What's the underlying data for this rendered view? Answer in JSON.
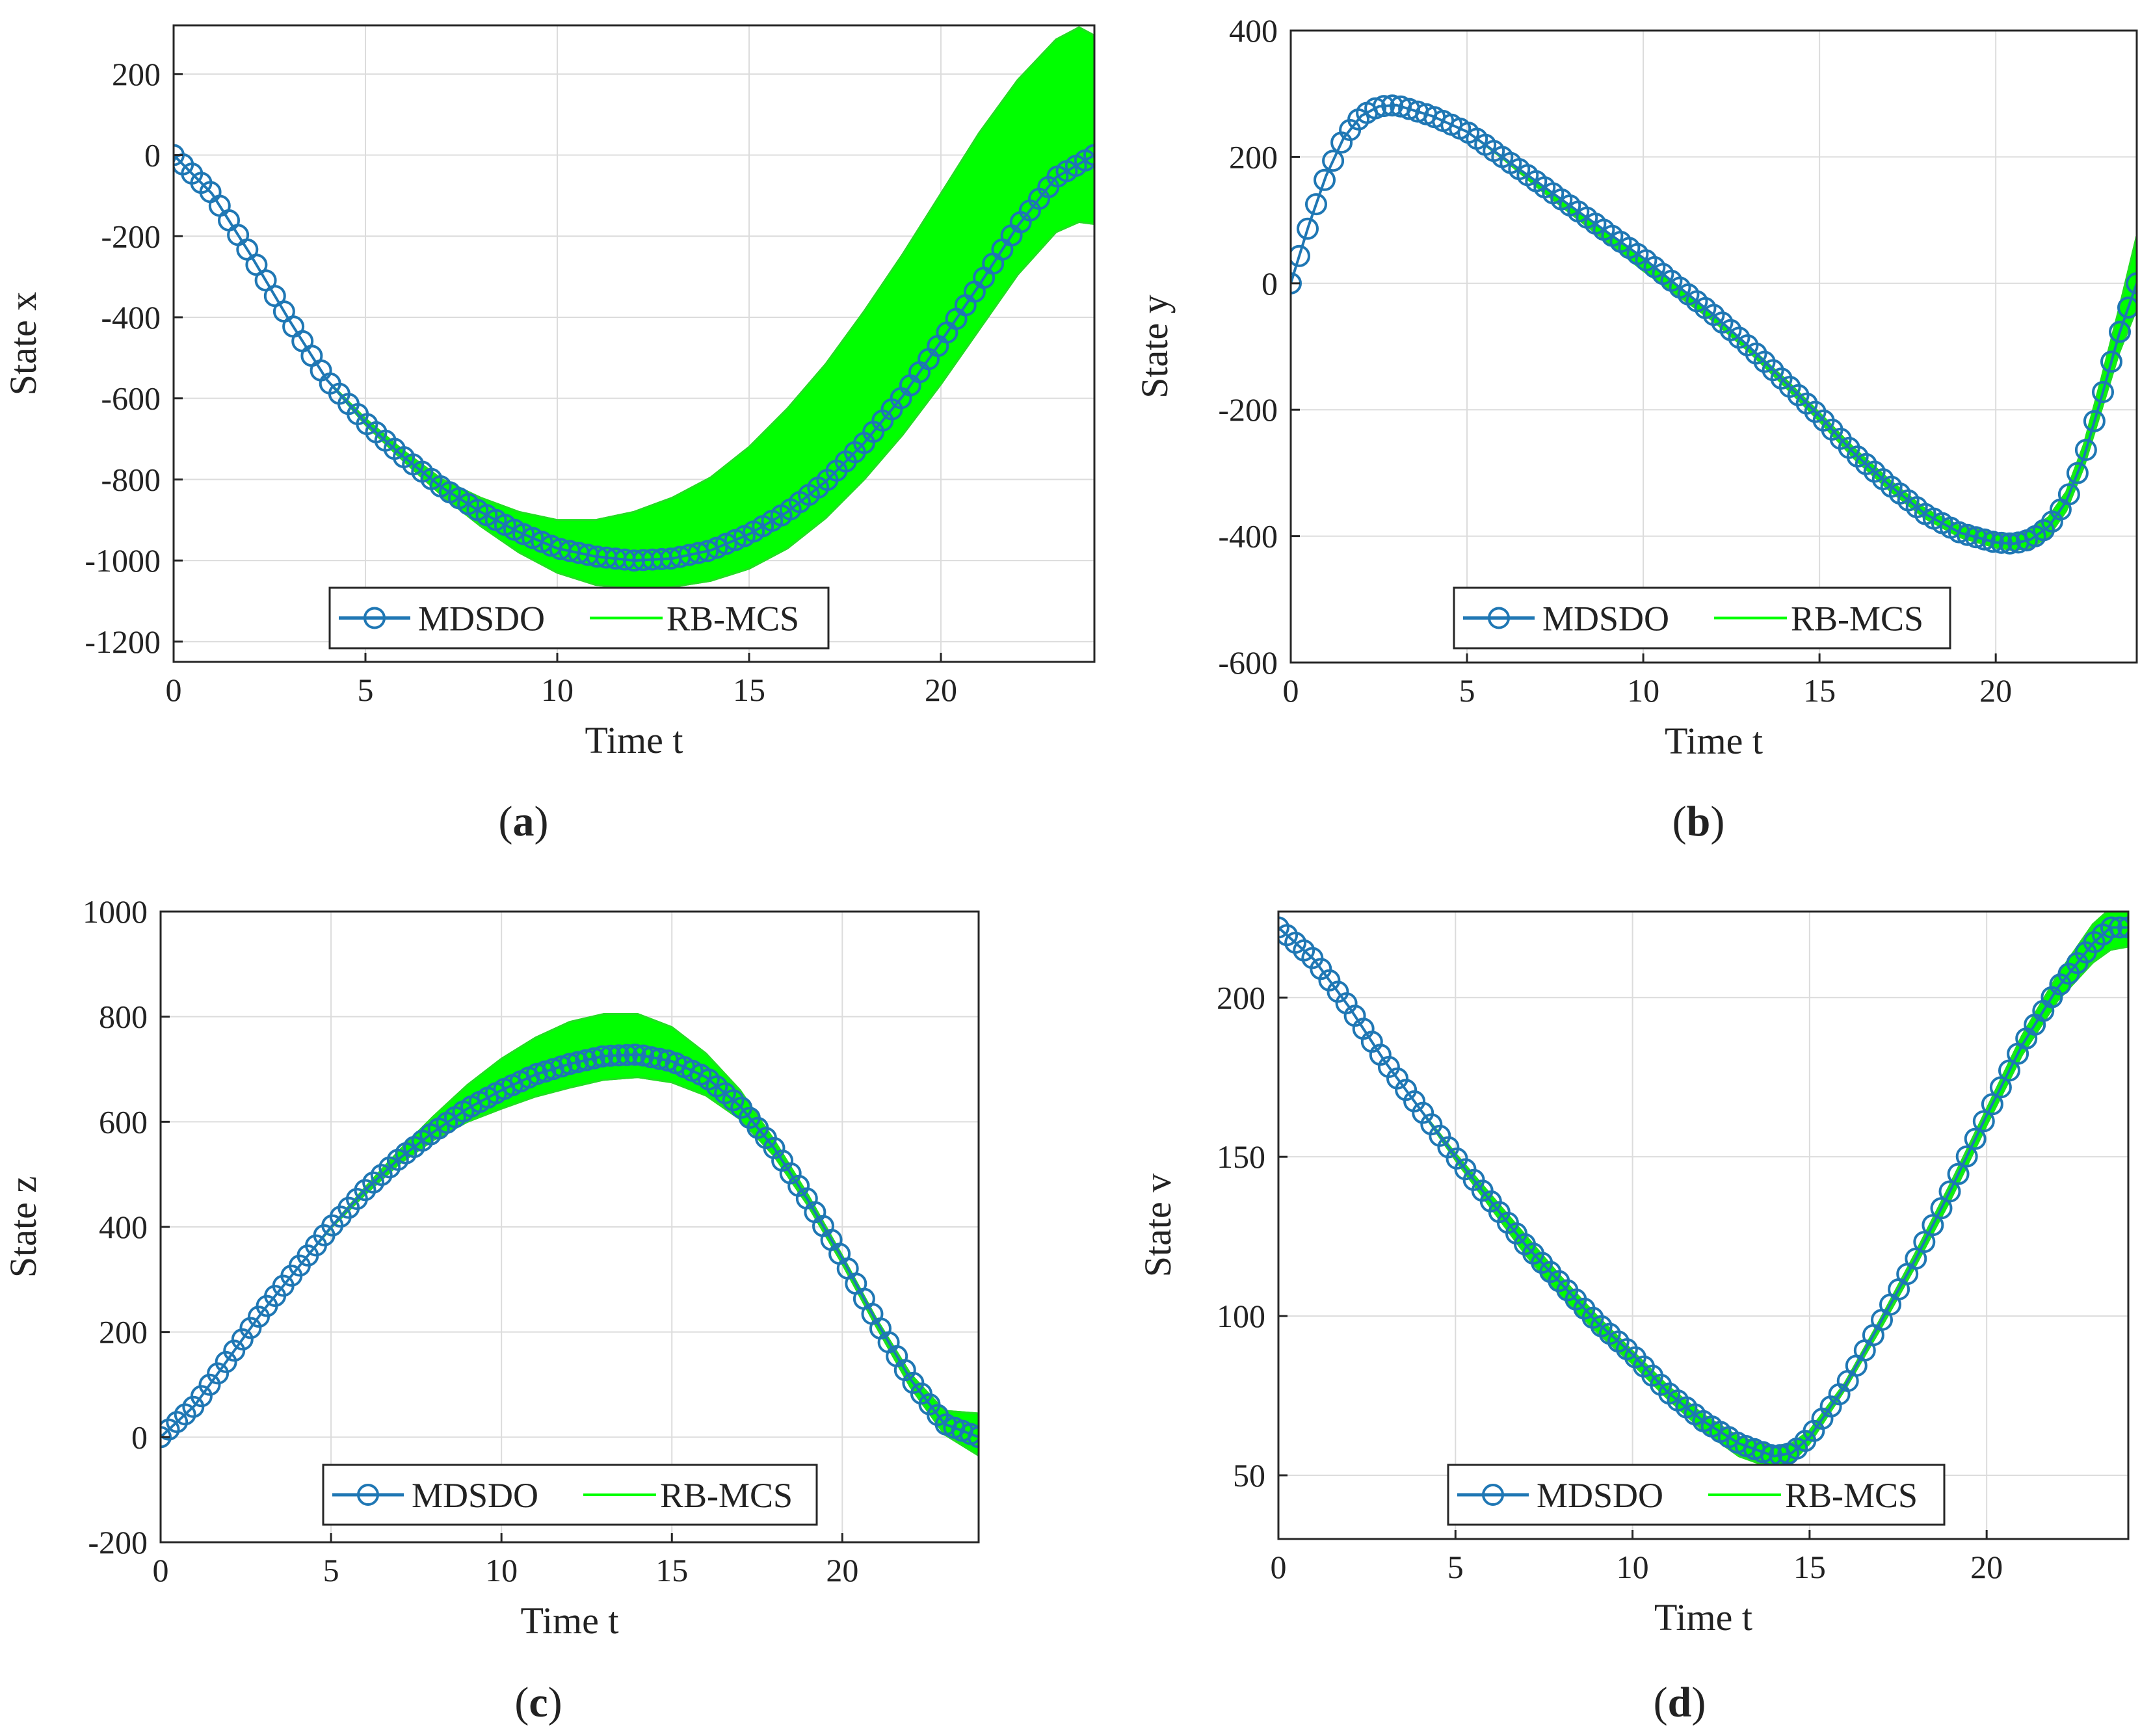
{
  "figure": {
    "colors": {
      "mdsdo": "#1f77b4",
      "rbmcs": "#00ff00",
      "grid": "#dcdcdc",
      "axes": "#262626"
    },
    "legend_location": "bottom-center"
  },
  "chart_data": [
    {
      "type": "line",
      "panel": "a",
      "caption": {
        "open": "(",
        "letter": "a",
        "close": ")"
      },
      "xlabel": "Time t",
      "ylabel": "State x",
      "xlim": [
        0,
        24
      ],
      "ylim": [
        -1250,
        320
      ],
      "xticks": [
        0,
        5,
        10,
        15,
        20
      ],
      "yticks": [
        -1200,
        -1000,
        -800,
        -600,
        -400,
        -200,
        0,
        200
      ],
      "grid": true,
      "legend": [
        "MDSDO",
        "RB-MCS"
      ],
      "series": [
        {
          "name": "MDSDO",
          "style": "line-with-circle-markers",
          "x": [
            0,
            1,
            2,
            3,
            4,
            5,
            6,
            7,
            8,
            9,
            10,
            11,
            12,
            13,
            14,
            15,
            16,
            17,
            18,
            19,
            20,
            21,
            22,
            23,
            24
          ],
          "y": [
            0,
            -95,
            -245,
            -405,
            -555,
            -660,
            -745,
            -820,
            -880,
            -930,
            -970,
            -990,
            -1000,
            -995,
            -975,
            -935,
            -880,
            -805,
            -710,
            -595,
            -460,
            -320,
            -175,
            -55,
            0
          ]
        },
        {
          "name": "RB-MCS",
          "style": "envelope",
          "x": [
            0,
            1,
            2,
            3,
            4,
            5,
            6,
            7,
            8,
            9,
            10,
            11,
            12,
            13,
            14,
            15,
            16,
            17,
            18,
            19,
            20,
            21,
            22,
            23,
            23.6,
            24
          ],
          "upper": [
            0,
            -95,
            -245,
            -405,
            -555,
            -650,
            -730,
            -800,
            -845,
            -880,
            -900,
            -900,
            -880,
            -845,
            -795,
            -720,
            -625,
            -515,
            -385,
            -245,
            -95,
            55,
            185,
            285,
            315,
            295
          ],
          "lower": [
            0,
            -95,
            -245,
            -405,
            -555,
            -665,
            -755,
            -840,
            -915,
            -980,
            -1030,
            -1060,
            -1070,
            -1065,
            -1050,
            -1020,
            -970,
            -895,
            -800,
            -690,
            -565,
            -430,
            -295,
            -190,
            -165,
            -170
          ]
        }
      ]
    },
    {
      "type": "line",
      "panel": "b",
      "caption": {
        "open": "(",
        "letter": "b",
        "close": ")"
      },
      "xlabel": "Time t",
      "ylabel": "State y",
      "xlim": [
        0,
        24
      ],
      "ylim": [
        -600,
        400
      ],
      "xticks": [
        0,
        5,
        10,
        15,
        20
      ],
      "yticks": [
        -600,
        -400,
        -200,
        0,
        200,
        400
      ],
      "grid": true,
      "legend": [
        "MDSDO",
        "RB-MCS"
      ],
      "series": [
        {
          "name": "MDSDO",
          "style": "line-with-circle-markers",
          "x": [
            0,
            0.5,
            1,
            1.5,
            2,
            2.5,
            3,
            4,
            5,
            6,
            7,
            8,
            9,
            10,
            11,
            12,
            13,
            14,
            15,
            16,
            17,
            18,
            19,
            20,
            20.5,
            21,
            21.5,
            22,
            22.5,
            23,
            23.5,
            24
          ],
          "y": [
            0,
            90,
            170,
            230,
            265,
            280,
            282,
            265,
            240,
            200,
            160,
            120,
            80,
            40,
            -5,
            -50,
            -100,
            -155,
            -210,
            -270,
            -320,
            -365,
            -395,
            -410,
            -412,
            -405,
            -385,
            -345,
            -275,
            -180,
            -80,
            0
          ]
        },
        {
          "name": "RB-MCS",
          "style": "envelope",
          "x": [
            0,
            0.5,
            1,
            1.5,
            2,
            2.5,
            3,
            4,
            5,
            6,
            7,
            8,
            9,
            10,
            11,
            12,
            13,
            14,
            15,
            16,
            17,
            18,
            19,
            20,
            20.5,
            21,
            21.5,
            22,
            22.5,
            23,
            23.5,
            24
          ],
          "upper": [
            0,
            90,
            170,
            230,
            265,
            280,
            282,
            265,
            240,
            200,
            160,
            120,
            80,
            40,
            -5,
            -50,
            -100,
            -150,
            -205,
            -262,
            -312,
            -357,
            -385,
            -395,
            -397,
            -390,
            -370,
            -330,
            -255,
            -150,
            -40,
            75
          ],
          "lower": [
            0,
            90,
            170,
            230,
            265,
            280,
            282,
            265,
            240,
            198,
            152,
            108,
            65,
            20,
            -20,
            -60,
            -108,
            -162,
            -218,
            -278,
            -328,
            -372,
            -402,
            -418,
            -422,
            -418,
            -400,
            -360,
            -290,
            -200,
            -110,
            -40
          ]
        }
      ]
    },
    {
      "type": "line",
      "panel": "c",
      "caption": {
        "open": "(",
        "letter": "c",
        "close": ")"
      },
      "xlabel": "Time t",
      "ylabel": "State z",
      "xlim": [
        0,
        24
      ],
      "ylim": [
        -200,
        1000
      ],
      "xticks": [
        0,
        5,
        10,
        15,
        20
      ],
      "yticks": [
        -200,
        0,
        200,
        400,
        600,
        800,
        1000
      ],
      "grid": true,
      "legend": [
        "MDSDO",
        "RB-MCS"
      ],
      "series": [
        {
          "name": "MDSDO",
          "style": "line-with-circle-markers",
          "x": [
            0,
            1,
            2,
            3,
            4,
            5,
            6,
            7,
            8,
            9,
            10,
            11,
            12,
            13,
            14,
            15,
            16,
            17,
            18,
            19,
            20,
            21,
            22,
            23,
            24
          ],
          "y": [
            0,
            60,
            150,
            240,
            320,
            400,
            470,
            530,
            580,
            625,
            660,
            690,
            710,
            725,
            728,
            715,
            685,
            630,
            550,
            450,
            340,
            220,
            110,
            25,
            0
          ]
        },
        {
          "name": "RB-MCS",
          "style": "envelope",
          "x": [
            0,
            1,
            2,
            3,
            4,
            5,
            6,
            7,
            8,
            9,
            10,
            11,
            12,
            13,
            14,
            15,
            16,
            17,
            18,
            19,
            20,
            21,
            22,
            23,
            24
          ],
          "upper": [
            0,
            60,
            150,
            240,
            320,
            400,
            475,
            545,
            610,
            670,
            720,
            760,
            790,
            805,
            805,
            780,
            730,
            660,
            565,
            460,
            345,
            225,
            120,
            50,
            45
          ],
          "lower": [
            0,
            60,
            150,
            240,
            320,
            398,
            462,
            520,
            565,
            600,
            625,
            648,
            665,
            680,
            685,
            675,
            650,
            605,
            535,
            440,
            330,
            210,
            95,
            5,
            -35
          ]
        }
      ]
    },
    {
      "type": "line",
      "panel": "d",
      "caption": {
        "open": "(",
        "letter": "d",
        "close": ")"
      },
      "xlabel": "Time t",
      "ylabel": "State v",
      "xlim": [
        0,
        24
      ],
      "ylim": [
        30,
        227
      ],
      "xticks": [
        0,
        5,
        10,
        15,
        20
      ],
      "yticks": [
        50,
        100,
        150,
        200
      ],
      "grid": true,
      "legend": [
        "MDSDO",
        "RB-MCS"
      ],
      "series": [
        {
          "name": "MDSDO",
          "style": "line-with-circle-markers",
          "x": [
            0,
            1,
            2,
            3,
            4,
            5,
            6,
            7,
            8,
            9,
            10,
            11,
            12,
            13,
            14,
            14.5,
            15,
            16,
            17,
            18,
            19,
            20,
            21,
            22,
            23,
            23.5,
            24
          ],
          "y": [
            222,
            212,
            197,
            180,
            165,
            150,
            136,
            122,
            110,
            98,
            88,
            76,
            67,
            60,
            56,
            57,
            62,
            78,
            98,
            118,
            140,
            163,
            185,
            203,
            217,
            222,
            222
          ]
        },
        {
          "name": "RB-MCS",
          "style": "envelope",
          "x": [
            0,
            1,
            2,
            3,
            4,
            5,
            6,
            7,
            8,
            9,
            10,
            11,
            12,
            13,
            14,
            14.5,
            15,
            16,
            17,
            18,
            19,
            20,
            21,
            22,
            23,
            23.5,
            24
          ],
          "upper": [
            222,
            212,
            197,
            180,
            165,
            151,
            138,
            125,
            112,
            100,
            89,
            78,
            69,
            62,
            59,
            60,
            64,
            79,
            99,
            120,
            142,
            165,
            188,
            207,
            223,
            228,
            227
          ],
          "lower": [
            222,
            212,
            197,
            180,
            165,
            149,
            134,
            119,
            106,
            95,
            85,
            74,
            64,
            56,
            52,
            54,
            60,
            77,
            96,
            116,
            137,
            160,
            182,
            199,
            211,
            215,
            216
          ]
        }
      ]
    }
  ]
}
